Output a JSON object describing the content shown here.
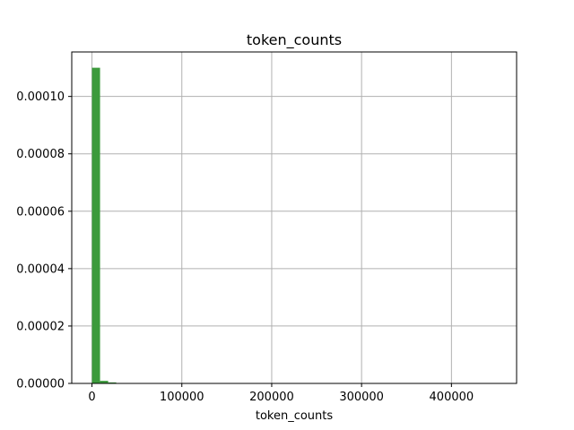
{
  "chart_data": {
    "type": "bar",
    "title": "token_counts",
    "xlabel": "token_counts",
    "ylabel": "",
    "xlim": [
      -22500,
      472500
    ],
    "ylim": [
      0,
      0.0001155
    ],
    "grid": true,
    "bar_color": "#3c9a3c",
    "bins": {
      "start": 0,
      "width": 9000,
      "density": [
        0.00011,
        9e-07,
        3.5e-07,
        1e-07,
        5e-08,
        3e-08,
        2e-08,
        1e-08,
        1e-08,
        5e-09
      ]
    },
    "x_ticks": [
      {
        "value": 0,
        "label": "0"
      },
      {
        "value": 100000,
        "label": "100000"
      },
      {
        "value": 200000,
        "label": "200000"
      },
      {
        "value": 300000,
        "label": "300000"
      },
      {
        "value": 400000,
        "label": "400000"
      }
    ],
    "y_ticks": [
      {
        "value": 0,
        "label": "0.00000"
      },
      {
        "value": 2e-05,
        "label": "0.00002"
      },
      {
        "value": 4e-05,
        "label": "0.00004"
      },
      {
        "value": 6e-05,
        "label": "0.00006"
      },
      {
        "value": 8e-05,
        "label": "0.00008"
      },
      {
        "value": 0.0001,
        "label": "0.00010"
      }
    ]
  }
}
